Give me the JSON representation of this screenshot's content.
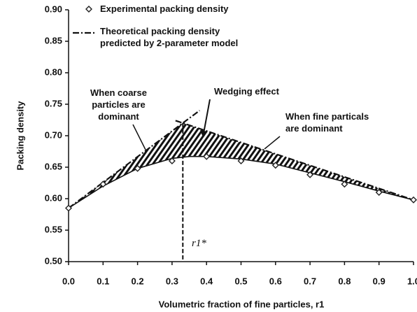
{
  "chart_data": {
    "type": "line",
    "x_label": "Volumetric fraction of fine particles, r1",
    "y_label": "Packing density",
    "xlim": [
      0,
      1
    ],
    "ylim": [
      0.5,
      0.9
    ],
    "xticks": [
      {
        "value": 0,
        "label": "0.0"
      },
      0.1,
      0.2,
      0.3,
      0.4,
      0.5,
      0.6,
      0.7,
      0.8,
      0.9,
      {
        "value": 1,
        "label": "1.0"
      }
    ],
    "yticks": [
      {
        "value": 0.5,
        "label": "0.50"
      },
      0.55,
      {
        "value": 0.6,
        "label": "0.60"
      },
      0.65,
      {
        "value": 0.7,
        "label": "0.70"
      },
      0.75,
      {
        "value": 0.8,
        "label": "0.80"
      },
      0.85,
      {
        "value": 0.9,
        "label": "0.90"
      }
    ],
    "series": [
      {
        "name": "Experimental packing density",
        "color": "#222",
        "marker": "diamond",
        "x": [
          0,
          0.1,
          0.2,
          0.3,
          0.4,
          0.5,
          0.6,
          0.7,
          0.8,
          0.9,
          1
        ],
        "values": [
          0.585,
          0.623,
          0.648,
          0.66,
          0.667,
          0.66,
          0.653,
          0.638,
          0.623,
          0.61,
          0.598
        ]
      },
      {
        "name": "Theoretical packing density predicted by 2-parameter model",
        "color": "#111",
        "style": "dashdot",
        "x": [
          0,
          0.38,
          null,
          0.31,
          1
        ],
        "values": [
          0.585,
          0.74,
          null,
          0.724,
          0.598
        ]
      },
      {
        "color": "#111",
        "style": "solid",
        "x": [
          0,
          0.1,
          0.2,
          0.3,
          0.35,
          0.4,
          0.5,
          0.6,
          0.7,
          0.8,
          0.9,
          1
        ],
        "values": [
          0.585,
          0.62,
          0.648,
          0.664,
          0.667,
          0.667,
          0.663,
          0.655,
          0.641,
          0.627,
          0.612,
          0.598
        ]
      }
    ],
    "annotations": [
      "When coarse particles are dominant",
      "Wedging effect",
      "When fine particals are dominant",
      "r1*"
    ]
  }
}
